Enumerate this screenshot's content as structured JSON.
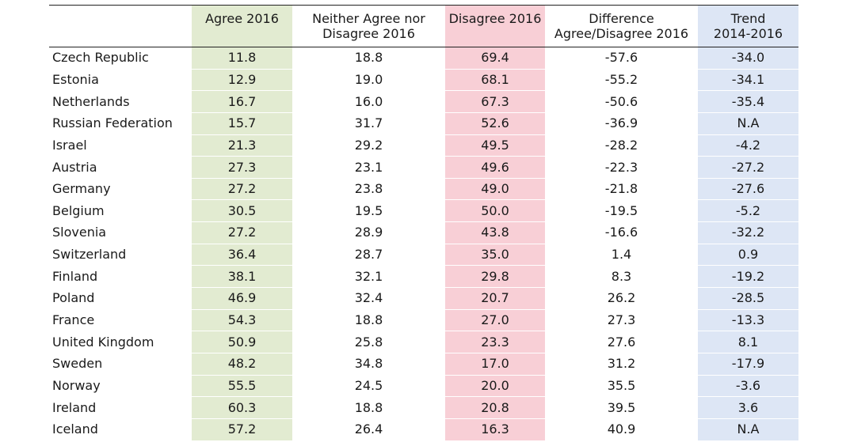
{
  "table": {
    "headers": [
      "",
      "Agree 2016",
      "Neither Agree nor\nDisagree 2016",
      "Disagree 2016",
      "Difference\nAgree/Disagree 2016",
      "Trend\n2014-2016"
    ],
    "rows": [
      [
        "Czech Republic",
        "11.8",
        "18.8",
        "69.4",
        "-57.6",
        "-34.0"
      ],
      [
        "Estonia",
        "12.9",
        "19.0",
        "68.1",
        "-55.2",
        "-34.1"
      ],
      [
        "Netherlands",
        "16.7",
        "16.0",
        "67.3",
        "-50.6",
        "-35.4"
      ],
      [
        "Russian Federation",
        "15.7",
        "31.7",
        "52.6",
        "-36.9",
        "N.A"
      ],
      [
        "Israel",
        "21.3",
        "29.2",
        "49.5",
        "-28.2",
        "-4.2"
      ],
      [
        "Austria",
        "27.3",
        "23.1",
        "49.6",
        "-22.3",
        "-27.2"
      ],
      [
        "Germany",
        "27.2",
        "23.8",
        "49.0",
        "-21.8",
        "-27.6"
      ],
      [
        "Belgium",
        "30.5",
        "19.5",
        "50.0",
        "-19.5",
        "-5.2"
      ],
      [
        "Slovenia",
        "27.2",
        "28.9",
        "43.8",
        "-16.6",
        "-32.2"
      ],
      [
        "Switzerland",
        "36.4",
        "28.7",
        "35.0",
        "1.4",
        "0.9"
      ],
      [
        "Finland",
        "38.1",
        "32.1",
        "29.8",
        "8.3",
        "-19.2"
      ],
      [
        "Poland",
        "46.9",
        "32.4",
        "20.7",
        "26.2",
        "-28.5"
      ],
      [
        "France",
        "54.3",
        "18.8",
        "27.0",
        "27.3",
        "-13.3"
      ],
      [
        "United Kingdom",
        "50.9",
        "25.8",
        "23.3",
        "27.6",
        "8.1"
      ],
      [
        "Sweden",
        "48.2",
        "34.8",
        "17.0",
        "31.2",
        "-17.9"
      ],
      [
        "Norway",
        "55.5",
        "24.5",
        "20.0",
        "35.5",
        "-3.6"
      ],
      [
        "Ireland",
        "60.3",
        "18.8",
        "20.8",
        "39.5",
        "3.6"
      ],
      [
        "Iceland",
        "57.2",
        "26.4",
        "16.3",
        "40.9",
        "N.A"
      ]
    ]
  },
  "colors": {
    "agree_column": "#e2ebd1",
    "disagree_column": "#f8cfd6",
    "trend_column": "#dde6f5"
  }
}
